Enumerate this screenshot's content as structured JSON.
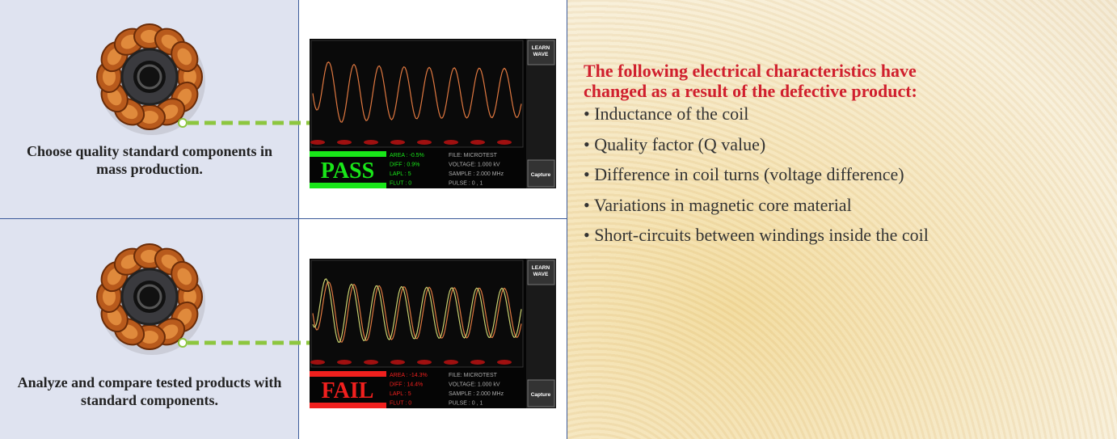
{
  "rows": [
    {
      "caption": "Choose quality standard components in mass production.",
      "screen": {
        "button_top": "LEARN WAVE",
        "button_bottom": "Capture",
        "result": "PASS",
        "color": "#19e619",
        "stats": [
          "AREA : -0.5%",
          "DIFF : 0.9%",
          "LAPL : 5",
          "FLUT : 0"
        ],
        "info": [
          "FILE: MICROTEST",
          "VOLTAGE: 1.000 kV",
          "SAMPLE : 2.000 MHz",
          "PULSE : 0 , 1"
        ]
      }
    },
    {
      "caption": "Analyze and compare tested products with standard components.",
      "screen": {
        "button_top": "LEARN WAVE",
        "button_bottom": "Capture",
        "result": "FAIL",
        "color": "#f0201e",
        "stats": [
          "AREA : -14.3%",
          "DIFF : 14.4%",
          "LAPL : 5",
          "FLUT : 0"
        ],
        "info": [
          "FILE: MICROTEST",
          "VOLTAGE: 1.000 kV",
          "SAMPLE : 2.000 MHz",
          "PULSE : 0 , 1"
        ]
      }
    }
  ],
  "panel": {
    "heading": "The following electrical characteristics have changed as a result of the defective product:",
    "bullets": [
      "Inductance of the coil",
      "Quality factor (Q value)",
      "Difference in coil turns (voltage difference)",
      "Variations in magnetic core material",
      "Short-circuits between windings inside the coil"
    ]
  }
}
